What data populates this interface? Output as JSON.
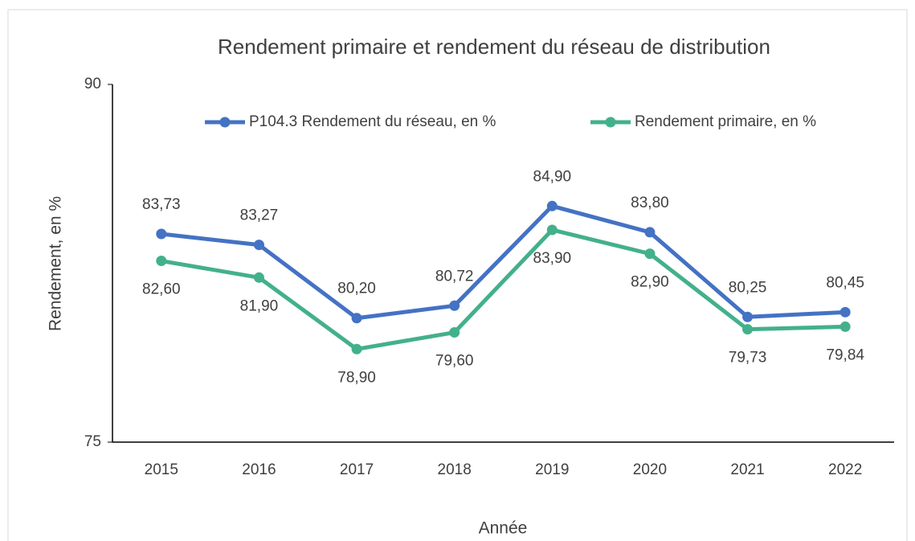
{
  "chart_data": {
    "type": "line",
    "title": "Rendement primaire et rendement du réseau de distribution",
    "x_label": "Année",
    "y_label": "Rendement, en %",
    "categories": [
      "2015",
      "2016",
      "2017",
      "2018",
      "2019",
      "2020",
      "2021",
      "2022"
    ],
    "series": [
      {
        "name": "P104.3 Rendement du réseau, en %",
        "color": "#4472c4",
        "values": [
          83.73,
          83.27,
          80.2,
          80.72,
          84.9,
          83.8,
          80.25,
          80.45
        ],
        "value_labels": [
          "83,73",
          "83,27",
          "80,20",
          "80,72",
          "84,90",
          "83,80",
          "80,25",
          "80,45"
        ]
      },
      {
        "name": "Rendement primaire, en %",
        "color": "#43b08c",
        "values": [
          82.6,
          81.9,
          78.9,
          79.6,
          83.9,
          82.9,
          79.73,
          79.84
        ],
        "value_labels": [
          "82,60",
          "81,90",
          "78,90",
          "79,60",
          "83,90",
          "82,90",
          "79,73",
          "79,84"
        ]
      }
    ],
    "ylim": [
      75,
      90
    ],
    "yticks": [
      75,
      90
    ],
    "grid": false,
    "legend": "top"
  }
}
